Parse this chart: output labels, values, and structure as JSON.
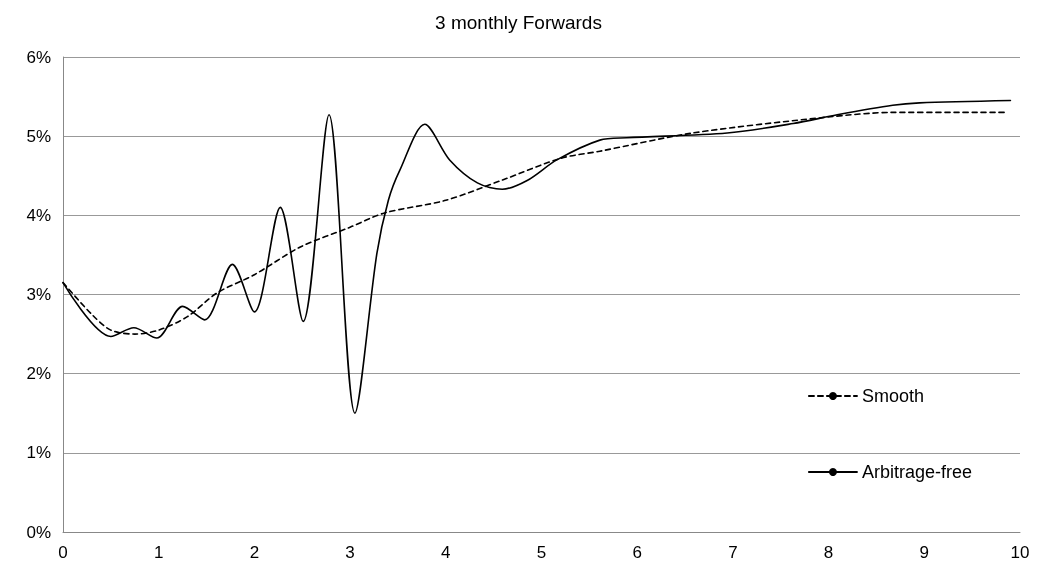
{
  "chart_data": {
    "type": "line",
    "title": "3 monthly Forwards",
    "xlim": [
      0,
      10
    ],
    "xticks": [
      0,
      1,
      2,
      3,
      4,
      5,
      6,
      7,
      8,
      9,
      10
    ],
    "ylim": [
      0,
      6
    ],
    "yticks": [
      {
        "value": 0,
        "label": "0%"
      },
      {
        "value": 1,
        "label": "1%"
      },
      {
        "value": 2,
        "label": "2%"
      },
      {
        "value": 3,
        "label": "3%"
      },
      {
        "value": 4,
        "label": "4%"
      },
      {
        "value": 5,
        "label": "5%"
      },
      {
        "value": 6,
        "label": "6%"
      }
    ],
    "grid": "y",
    "legend": "bottom right",
    "marker": "none",
    "series": [
      {
        "name": "Smooth",
        "color": "#000000",
        "line_style": "dashed",
        "x": [
          0,
          0.3,
          0.5,
          0.75,
          1.0,
          1.3,
          1.61,
          2.0,
          2.48,
          3.0,
          3.36,
          4.0,
          4.6,
          5.2,
          5.61,
          6.58,
          7.98,
          8.67,
          9.86
        ],
        "values": [
          3.15,
          2.75,
          2.55,
          2.5,
          2.55,
          2.72,
          3.02,
          3.25,
          3.6,
          3.85,
          4.03,
          4.19,
          4.45,
          4.72,
          4.81,
          5.04,
          5.24,
          5.3,
          5.3
        ]
      },
      {
        "name": "Arbitrage-free",
        "color": "#000000",
        "line_style": "solid",
        "x": [
          0,
          0.5,
          0.74,
          0.98,
          1.25,
          1.48,
          1.77,
          2.0,
          2.27,
          2.51,
          2.78,
          3.05,
          3.28,
          3.4,
          3.52,
          3.78,
          4.04,
          4.33,
          4.59,
          4.85,
          5.16,
          5.61,
          5.89,
          6.94,
          7.63,
          8.09,
          8.67,
          8.95,
          9.9
        ],
        "values": [
          3.15,
          2.47,
          2.58,
          2.45,
          2.85,
          2.68,
          3.38,
          2.78,
          4.1,
          2.66,
          5.27,
          1.5,
          3.52,
          4.19,
          4.57,
          5.15,
          4.7,
          4.41,
          4.33,
          4.44,
          4.7,
          4.95,
          4.98,
          5.04,
          5.16,
          5.27,
          5.39,
          5.42,
          5.45
        ]
      }
    ]
  }
}
